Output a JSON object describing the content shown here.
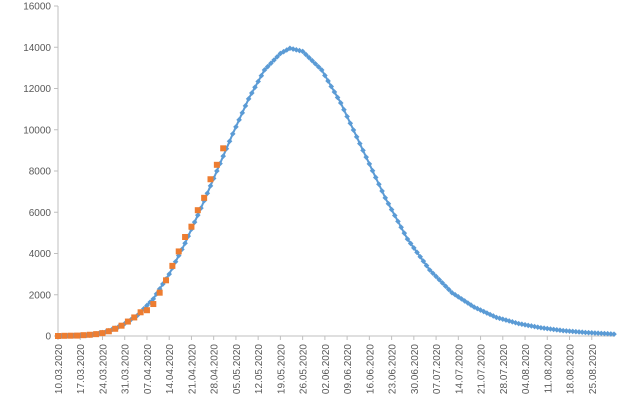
{
  "chart_data": {
    "type": "scatter",
    "title": "",
    "xlabel": "",
    "ylabel": "",
    "x_range": [
      "2020-03-10",
      "2020-09-01"
    ],
    "ylim": [
      0,
      16000
    ],
    "y_ticks": [
      0,
      2000,
      4000,
      6000,
      8000,
      10000,
      12000,
      14000,
      16000
    ],
    "x_tick_labels": [
      "10.03.2020",
      "17.03.2020",
      "24.03.2020",
      "31.03.2020",
      "07.04.2020",
      "14.04.2020",
      "21.04.2020",
      "28.04.2020",
      "05.05.2020",
      "12.05.2020",
      "19.05.2020",
      "26.05.2020",
      "02.06.2020",
      "09.06.2020",
      "16.06.2020",
      "23.06.2020",
      "30.06.2020",
      "07.07.2020",
      "14.07.2020",
      "21.07.2020",
      "28.07.2020",
      "04.08.2020",
      "11.08.2020",
      "18.08.2020",
      "25.08.2020"
    ],
    "grid": false,
    "legend": "none",
    "series": [
      {
        "marker": "diamond",
        "color": "#5B9BD5",
        "points": [
          [
            "2020-03-10",
            0
          ],
          [
            "2020-03-20",
            40
          ],
          [
            "2020-03-25",
            200
          ],
          [
            "2020-03-30",
            500
          ],
          [
            "2020-04-04",
            1000
          ],
          [
            "2020-04-09",
            1800
          ],
          [
            "2020-04-14",
            3000
          ],
          [
            "2020-04-19",
            4500
          ],
          [
            "2020-04-24",
            6200
          ],
          [
            "2020-04-29",
            8000
          ],
          [
            "2020-05-04",
            9800
          ],
          [
            "2020-05-09",
            11500
          ],
          [
            "2020-05-14",
            12900
          ],
          [
            "2020-05-19",
            13700
          ],
          [
            "2020-05-22",
            13950
          ],
          [
            "2020-05-26",
            13800
          ],
          [
            "2020-06-01",
            12900
          ],
          [
            "2020-06-07",
            11300
          ],
          [
            "2020-06-14",
            9000
          ],
          [
            "2020-06-21",
            6700
          ],
          [
            "2020-06-28",
            4700
          ],
          [
            "2020-07-05",
            3200
          ],
          [
            "2020-07-12",
            2100
          ],
          [
            "2020-07-19",
            1400
          ],
          [
            "2020-07-26",
            900
          ],
          [
            "2020-08-02",
            600
          ],
          [
            "2020-08-09",
            400
          ],
          [
            "2020-08-16",
            260
          ],
          [
            "2020-08-23",
            170
          ],
          [
            "2020-08-30",
            110
          ],
          [
            "2020-09-01",
            90
          ]
        ]
      },
      {
        "marker": "square",
        "color": "#ED7D31",
        "points": [
          [
            "2020-03-10",
            0
          ],
          [
            "2020-03-12",
            10
          ],
          [
            "2020-03-14",
            15
          ],
          [
            "2020-03-16",
            20
          ],
          [
            "2020-03-18",
            40
          ],
          [
            "2020-03-20",
            60
          ],
          [
            "2020-03-22",
            90
          ],
          [
            "2020-03-24",
            140
          ],
          [
            "2020-03-26",
            230
          ],
          [
            "2020-03-28",
            350
          ],
          [
            "2020-03-30",
            500
          ],
          [
            "2020-04-01",
            700
          ],
          [
            "2020-04-03",
            900
          ],
          [
            "2020-04-05",
            1150
          ],
          [
            "2020-04-07",
            1250
          ],
          [
            "2020-04-09",
            1550
          ],
          [
            "2020-04-11",
            2100
          ],
          [
            "2020-04-13",
            2700
          ],
          [
            "2020-04-15",
            3400
          ],
          [
            "2020-04-17",
            4100
          ],
          [
            "2020-04-19",
            4800
          ],
          [
            "2020-04-21",
            5300
          ],
          [
            "2020-04-23",
            6100
          ],
          [
            "2020-04-25",
            6700
          ],
          [
            "2020-04-27",
            7600
          ],
          [
            "2020-04-29",
            8300
          ],
          [
            "2020-05-01",
            9100
          ]
        ]
      }
    ]
  }
}
